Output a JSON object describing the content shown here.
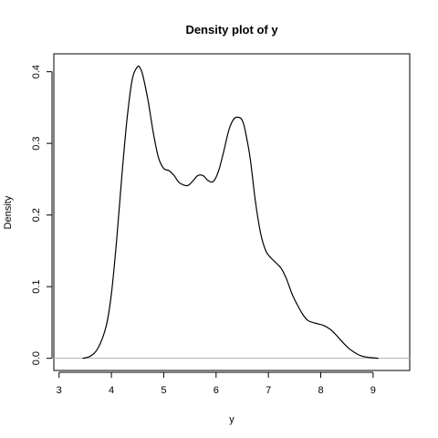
{
  "chart_data": {
    "type": "line",
    "title": "Density plot of  y",
    "xlabel": "y",
    "ylabel": "Density",
    "xlim": [
      2.9,
      9.7
    ],
    "ylim": [
      -0.017,
      0.425
    ],
    "x_ticks": [
      3,
      4,
      5,
      6,
      7,
      8,
      9
    ],
    "y_ticks": [
      0.0,
      0.1,
      0.2,
      0.3,
      0.4
    ],
    "y_tick_labels": [
      "0.0",
      "0.1",
      "0.2",
      "0.3",
      "0.4"
    ],
    "baseline_y": 0,
    "line_color": "#000000",
    "baseline_color": "#b0b0b0",
    "series": [
      {
        "x": [
          3.45,
          3.6,
          3.75,
          3.9,
          4.0,
          4.1,
          4.2,
          4.3,
          4.4,
          4.5,
          4.55,
          4.6,
          4.7,
          4.8,
          4.9,
          5.0,
          5.1,
          5.2,
          5.3,
          5.45,
          5.55,
          5.65,
          5.75,
          5.85,
          5.95,
          6.05,
          6.15,
          6.25,
          6.35,
          6.45,
          6.5,
          6.55,
          6.65,
          6.75,
          6.85,
          6.95,
          7.05,
          7.15,
          7.25,
          7.35,
          7.45,
          7.55,
          7.65,
          7.75,
          7.85,
          7.95,
          8.05,
          8.15,
          8.25,
          8.35,
          8.45,
          8.55,
          8.65,
          8.75,
          8.85,
          8.95,
          9.1
        ],
        "y": [
          0.0,
          0.003,
          0.015,
          0.045,
          0.09,
          0.165,
          0.255,
          0.335,
          0.39,
          0.407,
          0.405,
          0.395,
          0.36,
          0.315,
          0.28,
          0.265,
          0.262,
          0.255,
          0.245,
          0.241,
          0.247,
          0.255,
          0.255,
          0.248,
          0.247,
          0.262,
          0.29,
          0.32,
          0.335,
          0.336,
          0.332,
          0.32,
          0.28,
          0.22,
          0.175,
          0.15,
          0.14,
          0.133,
          0.125,
          0.11,
          0.09,
          0.075,
          0.062,
          0.053,
          0.05,
          0.048,
          0.046,
          0.042,
          0.036,
          0.028,
          0.02,
          0.013,
          0.008,
          0.004,
          0.002,
          0.001,
          0.0
        ]
      }
    ]
  }
}
